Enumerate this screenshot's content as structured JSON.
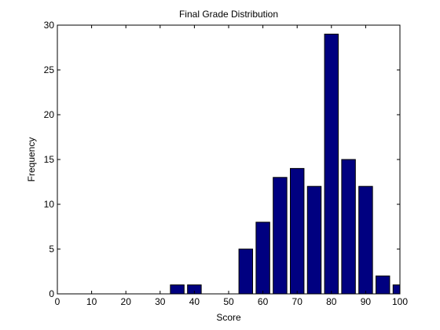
{
  "chart_data": {
    "type": "bar",
    "title": "Final Grade Distribution",
    "xlabel": "Score",
    "ylabel": "Frequency",
    "xlim": [
      0,
      100
    ],
    "ylim": [
      0,
      30
    ],
    "x": [
      5,
      10,
      15,
      20,
      25,
      30,
      35,
      40,
      45,
      50,
      55,
      60,
      65,
      70,
      75,
      80,
      85,
      90,
      95,
      100
    ],
    "values": [
      0,
      0,
      0,
      0,
      0,
      0,
      1,
      1,
      0,
      0,
      5,
      8,
      13,
      14,
      12,
      29,
      15,
      12,
      2,
      1
    ],
    "xticks": [
      0,
      10,
      20,
      30,
      40,
      50,
      60,
      70,
      80,
      90,
      100
    ],
    "yticks": [
      0,
      5,
      10,
      15,
      20,
      25,
      30
    ],
    "bar_color": "#000080",
    "grid": false,
    "legend": "none"
  }
}
